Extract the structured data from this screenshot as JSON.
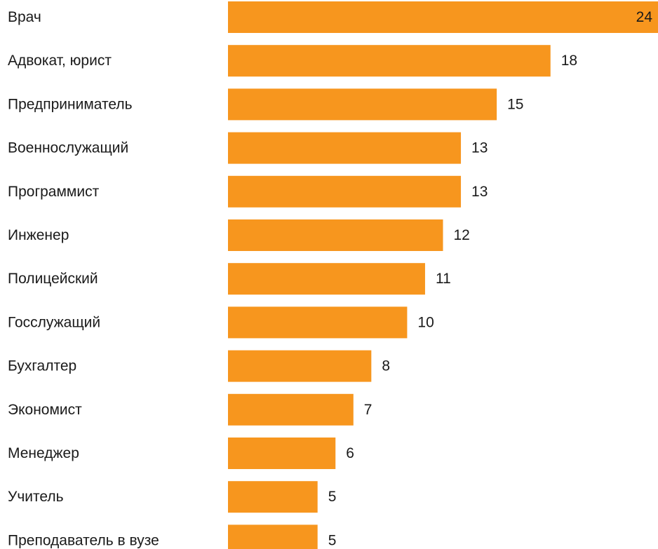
{
  "chart_data": {
    "type": "bar",
    "orientation": "horizontal",
    "categories": [
      "Врач",
      "Адвокат, юрист",
      "Предприниматель",
      "Военнослужащий",
      "Программист",
      "Инженер",
      "Полицейский",
      "Госслужащий",
      "Бухгалтер",
      "Экономист",
      "Менеджер",
      "Учитель",
      "Преподаватель в вузе"
    ],
    "values": [
      24,
      18,
      15,
      13,
      13,
      12,
      11,
      10,
      8,
      7,
      6,
      5,
      5
    ],
    "value_labels": [
      "24",
      "18",
      "15",
      "13",
      "13",
      "12",
      "11",
      "10",
      "8",
      "7",
      "6",
      "5",
      "5"
    ],
    "bar_color": "#F7961E",
    "title": "",
    "xlabel": "",
    "ylabel": "",
    "xlim": [
      0,
      24
    ],
    "grid": false,
    "legend": "none"
  }
}
